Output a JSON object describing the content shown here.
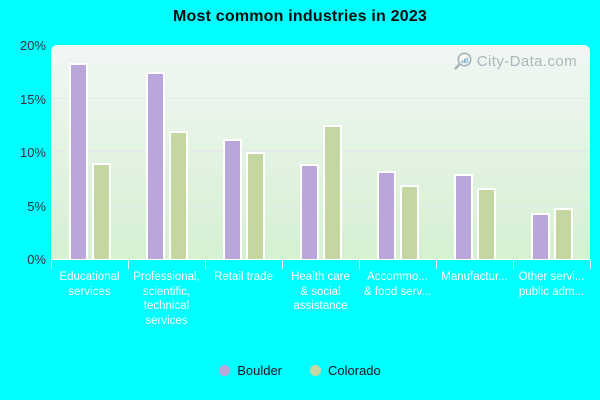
{
  "title": "Most common industries in 2023",
  "watermark": "City-Data.com",
  "colors": {
    "background": "#00ffff",
    "boulder": "#bba6dc",
    "colorado": "#c5d7a0",
    "plot_top": "#f1f6f4",
    "plot_bottom": "#d5f0d2",
    "axis_text": "#33333d",
    "category_text": "#ffffff"
  },
  "legend": {
    "items": [
      {
        "label": "Boulder",
        "color": "#bba6dc"
      },
      {
        "label": "Colorado",
        "color": "#c5d7a0"
      }
    ]
  },
  "chart_data": {
    "type": "bar",
    "title": "Most common industries in 2023",
    "categories": [
      "Educational services",
      "Professional, scientific, technical services",
      "Retail trade",
      "Health care & social assistance",
      "Accommo... & food serv...",
      "Manufactur...",
      "Other servi... public adm..."
    ],
    "category_lines": [
      [
        "Educational",
        "services"
      ],
      [
        "Professional,",
        "scientific,",
        "technical",
        "services"
      ],
      [
        "Retail trade"
      ],
      [
        "Health care",
        "& social",
        "assistance"
      ],
      [
        "Accommo...",
        "& food serv..."
      ],
      [
        "Manufactur..."
      ],
      [
        "Other servi...",
        "public adm..."
      ]
    ],
    "series": [
      {
        "name": "Boulder",
        "color": "#bba6dc",
        "values": [
          18.3,
          17.5,
          11.2,
          8.9,
          8.2,
          7.9,
          4.3
        ]
      },
      {
        "name": "Colorado",
        "color": "#c5d7a0",
        "values": [
          9.0,
          12.0,
          10.0,
          12.5,
          6.9,
          6.6,
          4.8
        ]
      }
    ],
    "xlabel": "",
    "ylabel": "",
    "ylim": [
      0,
      20
    ],
    "ytick_values": [
      0,
      5,
      10,
      15,
      20
    ],
    "ytick_labels": [
      "0%",
      "5%",
      "10%",
      "15%",
      "20%"
    ],
    "grid": true,
    "legend_position": "bottom"
  }
}
